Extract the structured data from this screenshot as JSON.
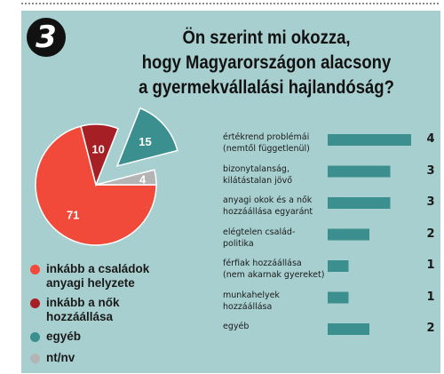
{
  "badge": "3",
  "title_lines": [
    "Ön szerint mi okozza,",
    "hogy Magyarországon alacsony",
    "a gyermekvállalási hajlandóság?"
  ],
  "colors": {
    "panel": "#a8cfcf",
    "red": "#f24a3a",
    "dark_red": "#a51f24",
    "teal": "#3b8f8f",
    "gray": "#b4b4b4",
    "bar": "#3b8f8f"
  },
  "chart_data": [
    {
      "type": "pie",
      "slices": [
        {
          "label": "inkább a családok anyagi helyzete",
          "value": 71,
          "color": "#f24a3a"
        },
        {
          "label": "inkább a nők hozzáállása",
          "value": 10,
          "color": "#a51f24"
        },
        {
          "label": "egyéb",
          "value": 15,
          "color": "#3b8f8f"
        },
        {
          "label": "nt/nv",
          "value": 4,
          "color": "#b4b4b4"
        }
      ],
      "legend": [
        {
          "lines": [
            "inkább a családok",
            "anyagi helyzete"
          ],
          "color": "#f24a3a"
        },
        {
          "lines": [
            "inkább a nők",
            "hozzáállása"
          ],
          "color": "#a51f24"
        },
        {
          "lines": [
            "egyéb"
          ],
          "color": "#3b8f8f"
        },
        {
          "lines": [
            "nt/nv"
          ],
          "color": "#b4b4b4"
        }
      ]
    },
    {
      "type": "bar",
      "orientation": "horizontal",
      "categories": [
        [
          "értékrend problémái",
          "(nemtől függetlenül)"
        ],
        [
          "bizonytalanság,",
          "kilátástalan jövő"
        ],
        [
          "anyagi okok és a nők",
          "hozzáállása egyaránt"
        ],
        [
          "elégtelen család-",
          "politika"
        ],
        [
          "férfiak hozzáállása",
          "(nem akarnak gyereket)"
        ],
        [
          "munkahelyek",
          "hozzáállása"
        ],
        [
          "egyéb"
        ]
      ],
      "values": [
        4,
        3,
        3,
        2,
        1,
        1,
        2
      ],
      "value_labels": [
        "4",
        "3",
        "3",
        "2",
        "1",
        "1",
        "2"
      ],
      "xlim": [
        0,
        4
      ]
    }
  ]
}
